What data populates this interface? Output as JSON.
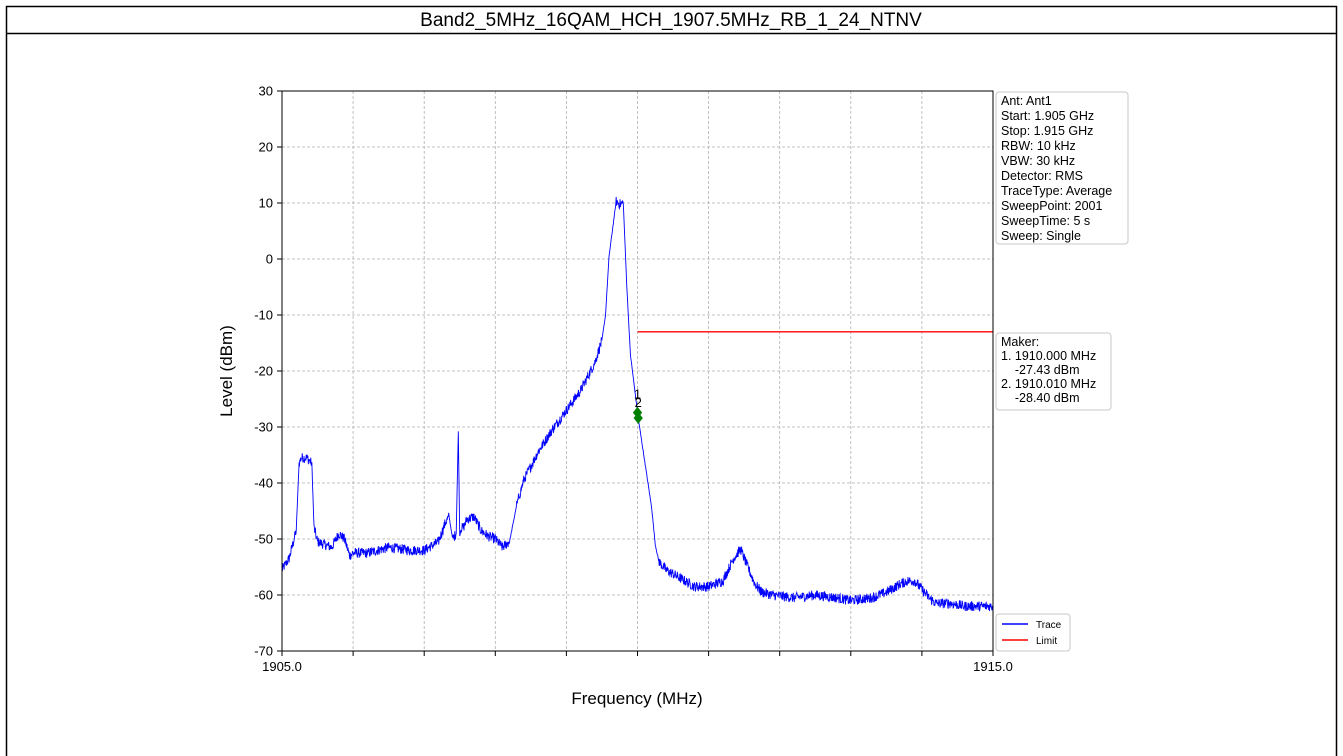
{
  "chart_data": {
    "type": "line",
    "title": "Band2_5MHz_16QAM_HCH_1907.5MHz_RB_1_24_NTNV",
    "xlabel": "Frequency (MHz)",
    "ylabel": "Level (dBm)",
    "xlim": [
      1905.0,
      1915.0
    ],
    "ylim": [
      -70,
      30
    ],
    "x_tick_labels": [
      "1905.0",
      "1915.0"
    ],
    "y_ticks": [
      30,
      20,
      10,
      0,
      -10,
      -20,
      -30,
      -40,
      -50,
      -60,
      -70
    ],
    "x_minor_ticks": [
      1906,
      1907,
      1908,
      1909,
      1910,
      1911,
      1912,
      1913,
      1914
    ],
    "grid": true,
    "series": [
      {
        "name": "Trace",
        "color": "#0000ff",
        "x": [
          1905.0,
          1905.1,
          1905.2,
          1905.24,
          1905.27,
          1905.35,
          1905.42,
          1905.45,
          1905.5,
          1905.7,
          1905.8,
          1905.88,
          1905.95,
          1906.0,
          1906.2,
          1906.5,
          1906.8,
          1907.0,
          1907.2,
          1907.3,
          1907.35,
          1907.4,
          1907.45,
          1907.48,
          1907.5,
          1907.52,
          1907.55,
          1907.6,
          1907.7,
          1907.8,
          1907.9,
          1908.0,
          1908.1,
          1908.2,
          1908.3,
          1908.4,
          1908.6,
          1908.8,
          1909.0,
          1909.2,
          1909.4,
          1909.5,
          1909.55,
          1909.6,
          1909.7,
          1909.75,
          1909.8,
          1909.85,
          1909.9,
          1910.0,
          1910.01,
          1910.1,
          1910.2,
          1910.25,
          1910.3,
          1910.4,
          1910.6,
          1910.8,
          1911.0,
          1911.2,
          1911.35,
          1911.45,
          1911.55,
          1911.65,
          1911.75,
          1911.9,
          1912.2,
          1912.5,
          1912.8,
          1913.0,
          1913.3,
          1913.5,
          1913.7,
          1913.8,
          1913.9,
          1914.0,
          1914.1,
          1914.2,
          1914.4,
          1914.6,
          1914.8,
          1915.0
        ],
        "y": [
          -55.5,
          -53.5,
          -48.5,
          -36.5,
          -35.5,
          -35.5,
          -36.5,
          -48.0,
          -50.5,
          -51.5,
          -49.0,
          -50.0,
          -53.0,
          -52.5,
          -52.5,
          -51.5,
          -52.0,
          -52.0,
          -50.5,
          -47.0,
          -46.0,
          -50.0,
          -49.0,
          -30.8,
          -49.5,
          -48.0,
          -48.0,
          -46.5,
          -46.0,
          -48.5,
          -49.5,
          -50.0,
          -51.5,
          -50.5,
          -44.0,
          -39.5,
          -34.5,
          -30.5,
          -27.0,
          -23.5,
          -18.5,
          -14.5,
          -10.0,
          0.5,
          10.3,
          9.8,
          10.0,
          -5.0,
          -17.0,
          -27.4,
          -28.4,
          -36.0,
          -44.5,
          -51.0,
          -54.0,
          -55.5,
          -57.0,
          -58.5,
          -58.5,
          -57.5,
          -53.5,
          -51.8,
          -55.0,
          -58.0,
          -59.5,
          -60.0,
          -60.5,
          -60.0,
          -60.5,
          -61.0,
          -60.5,
          -59.5,
          -58.0,
          -57.5,
          -57.5,
          -59.0,
          -60.5,
          -61.5,
          -61.5,
          -62.0,
          -62.0,
          -62.0
        ]
      },
      {
        "name": "Limit",
        "color": "#ff0000",
        "x": [
          1910.0,
          1915.0
        ],
        "y": [
          -13,
          -13
        ]
      }
    ],
    "markers": [
      {
        "label": "1",
        "x": 1910.0,
        "y": -27.43
      },
      {
        "label": "2",
        "x": 1910.01,
        "y": -28.4
      }
    ],
    "marker_color": "#008000",
    "settings_box": [
      "Ant: Ant1",
      "Start: 1.905 GHz",
      "Stop: 1.915 GHz",
      "RBW: 10 kHz",
      "VBW: 30 kHz",
      "Detector: RMS",
      "TraceType: Average",
      "SweepPoint: 2001",
      "SweepTime: 5 s",
      "Sweep: Single"
    ],
    "marker_box": [
      "Maker:",
      "1. 1910.000 MHz",
      "    -27.43 dBm",
      "2. 1910.010 MHz",
      "    -28.40 dBm"
    ],
    "legend_position": "lower-right-outside"
  }
}
